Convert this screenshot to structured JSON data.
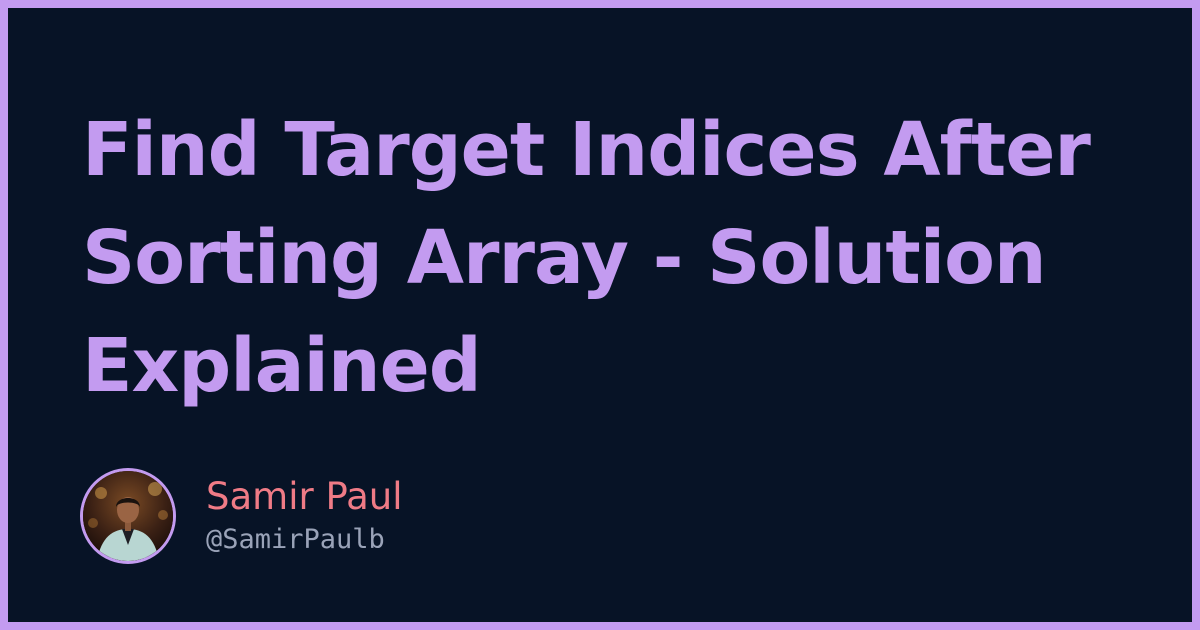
{
  "post": {
    "title": "Find Target Indices After Sorting Array - Solution Explained"
  },
  "author": {
    "name": "Samir Paul",
    "handle": "@SamirPaulb"
  },
  "icons": {
    "avatar": "author-photo-icon"
  },
  "colors": {
    "background": "#071326",
    "frame": "#c39bf0",
    "title": "#c39bf0",
    "author_name": "#ef7b86",
    "handle": "#9aa3b8"
  }
}
